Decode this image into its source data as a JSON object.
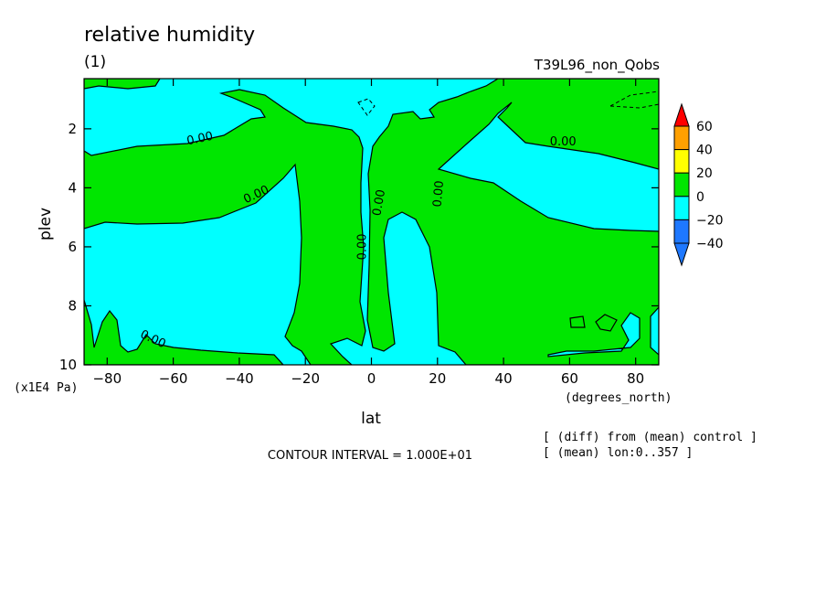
{
  "chart_data": {
    "type": "contour",
    "title": "relative humidity",
    "subtitle": "(1)",
    "run_label": "T39L96_non_Qobs",
    "xlabel": "lat",
    "x_units": "(degrees_north)",
    "ylabel": "plev",
    "y_units": "(x1E4 Pa)",
    "xlim": [
      -87,
      87
    ],
    "ylim": [
      10,
      0.3
    ],
    "x_ticks": [
      -80,
      -60,
      -40,
      -20,
      0,
      20,
      40,
      60,
      80
    ],
    "x_tick_labels": [
      "−80",
      "−60",
      "−40",
      "−20",
      "0",
      "20",
      "40",
      "60",
      "80"
    ],
    "y_ticks": [
      2,
      4,
      6,
      8,
      10
    ],
    "y_tick_labels": [
      "2",
      "4",
      "6",
      "8",
      "10"
    ],
    "contour_interval_text": "CONTOUR INTERVAL = 1.000E+01",
    "notes": [
      "[ (diff) from (mean) control ]",
      "[ (mean) lon:0..357 ]"
    ],
    "contour_labels": [
      {
        "text": "0.00",
        "lat": -52,
        "plev": 2.3
      },
      {
        "text": "0.00",
        "lat": -35,
        "plev": 4.2
      },
      {
        "text": "0.00",
        "lat": -66,
        "plev": 9.1
      },
      {
        "text": "0.00",
        "lat": -3,
        "plev": 6.0
      },
      {
        "text": "0.00",
        "lat": 2,
        "plev": 4.5
      },
      {
        "text": "0.00",
        "lat": 20,
        "plev": 4.2
      },
      {
        "text": "0.00",
        "lat": 58,
        "plev": 2.4
      }
    ],
    "colorbar": {
      "levels": [
        -40,
        -20,
        0,
        20,
        40,
        60
      ],
      "level_labels": [
        "−40",
        "−20",
        "0",
        "20",
        "40",
        "60"
      ],
      "colors": [
        "#1e78ff",
        "#00ffff",
        "#00e600",
        "#ffff00",
        "#ffa000",
        "#ff0000"
      ]
    },
    "fill_colors": {
      "positive": "#00e600",
      "negative": "#00ffff"
    }
  }
}
